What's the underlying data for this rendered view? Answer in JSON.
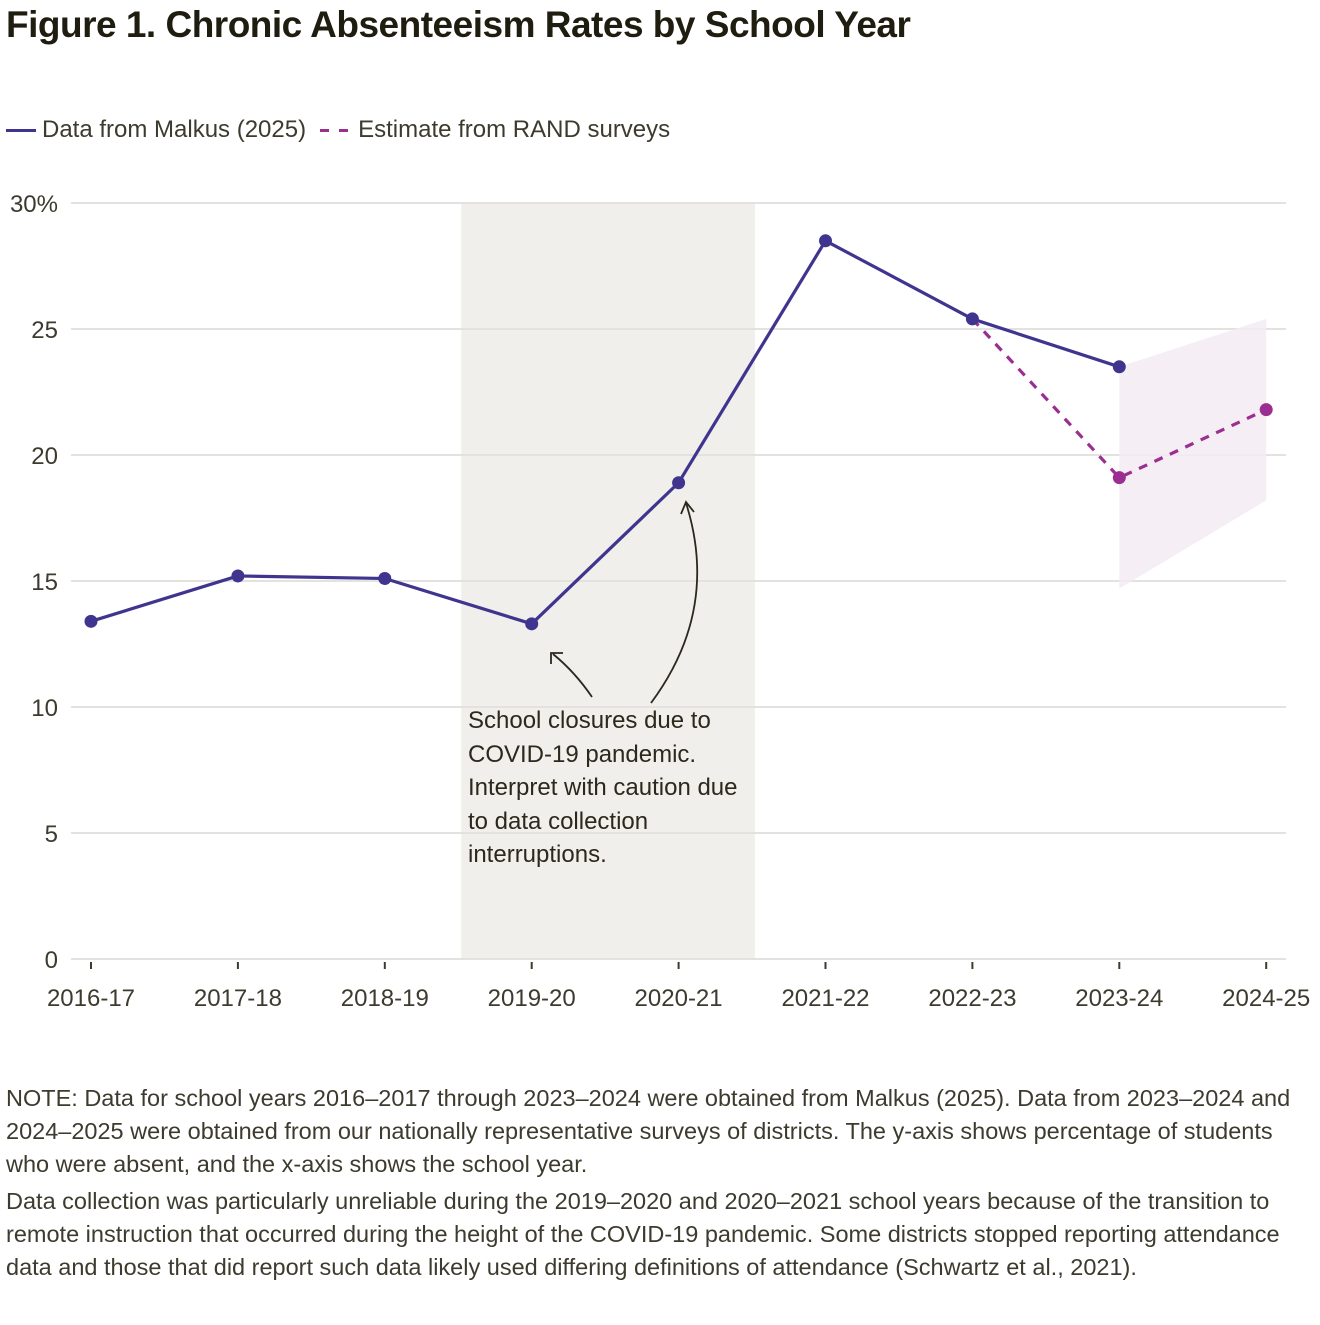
{
  "figure": {
    "title": "Figure 1. Chronic Absenteeism Rates by School Year",
    "annotation": "School closures due to COVID-19 pandemic. Interpret with caution due to data collection interruptions.",
    "notes": [
      "NOTE: Data for school years 2016–2017 through 2023–2024 were obtained from Malkus (2025). Data from 2023–2024 and 2024–2025 were obtained from our nationally representative surveys of districts. The y-axis shows percentage of students who were absent, and the x-axis shows the school year.",
      "Data collection was particularly unreliable during the 2019–2020 and 2020–2021 school years because of the transition to remote instruction that occurred during the height of the COVID-19 pandemic. Some districts stopped reporting attendance data and those that did report such data likely used differing definitions of attendance (Schwartz et al., 2021)."
    ]
  },
  "colors": {
    "malkus": "#3f358f",
    "rand": "#9b2f91",
    "rand_band": "#f3ebf3",
    "covid_shade": "#f0efeb",
    "grid": "#e3e2df",
    "text": "#3d3a2e"
  },
  "chart_data": {
    "type": "line",
    "title": "Figure 1. Chronic Absenteeism Rates by School Year",
    "xlabel": "",
    "ylabel": "",
    "categories": [
      "2016-17",
      "2017-18",
      "2018-19",
      "2019-20",
      "2020-21",
      "2021-22",
      "2022-23",
      "2023-24",
      "2024-25"
    ],
    "y_ticks": [
      0,
      5,
      10,
      15,
      20,
      25,
      30
    ],
    "y_tick_labels": [
      "0",
      "5",
      "10",
      "15",
      "20",
      "25",
      "30%"
    ],
    "ylim": [
      0,
      30
    ],
    "grid": true,
    "legend_position": "top-left",
    "series": [
      {
        "name": "Data from Malkus (2025)",
        "style": "solid",
        "values": [
          13.4,
          15.2,
          15.1,
          13.3,
          18.9,
          28.5,
          25.4,
          23.5,
          null
        ]
      },
      {
        "name": "Estimate from RAND surveys",
        "style": "dashed",
        "values": [
          null,
          null,
          null,
          null,
          null,
          null,
          25.4,
          19.1,
          21.8
        ],
        "markers_at": [
          "2023-24",
          "2024-25"
        ]
      }
    ],
    "uncertainty_band": {
      "series": "Estimate from RAND surveys",
      "categories": [
        "2023-24",
        "2024-25"
      ],
      "upper": [
        23.5,
        25.4
      ],
      "lower": [
        14.7,
        18.2
      ]
    },
    "shaded_region": {
      "label": "COVID-19 school closures",
      "from": "2019-20",
      "to": "2020-21"
    }
  }
}
